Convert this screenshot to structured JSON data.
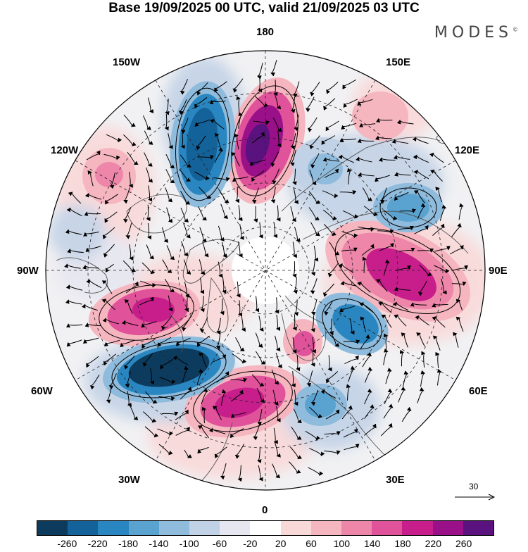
{
  "title": "Base 19/09/2025 00 UTC, valid 21/09/2025 03 UTC",
  "brand": "MODES",
  "brand_mark": "©",
  "longitudes": {
    "top": "180",
    "bottom": "0",
    "left": "90W",
    "right": "90E",
    "w150": "150W",
    "w120": "120W",
    "w60": "60W",
    "w30": "30W",
    "e150": "150E",
    "e120": "120E",
    "e60": "60E",
    "e30": "30E"
  },
  "reference_vector": "30",
  "colorbar": {
    "colors": [
      "#0d3b5e",
      "#14629a",
      "#2a86c0",
      "#5aa2d0",
      "#8fbbdc",
      "#c2d2e6",
      "#e6e6f0",
      "#ffffff",
      "#f9d8d8",
      "#f5b6c0",
      "#ee86aa",
      "#e0529a",
      "#c81e8c",
      "#9a1088",
      "#5a137e"
    ],
    "ticks": [
      "-260",
      "-220",
      "-180",
      "-140",
      "-100",
      "-60",
      "-20",
      "20",
      "60",
      "100",
      "140",
      "180",
      "220",
      "260"
    ]
  }
}
